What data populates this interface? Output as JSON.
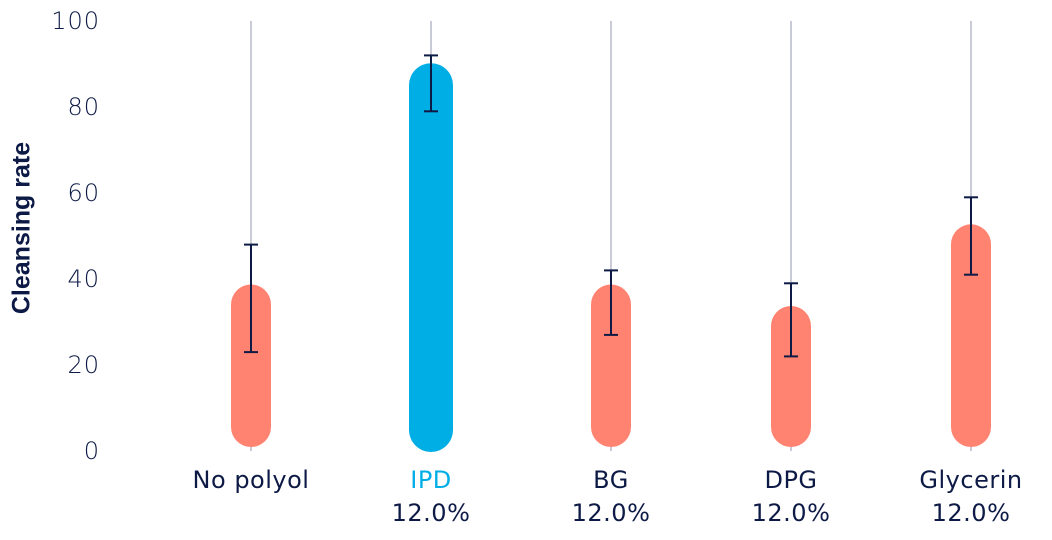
{
  "chart_data": {
    "type": "bar",
    "title": "",
    "xlabel": "",
    "ylabel": "Cleansing rate",
    "ylim": [
      0,
      100
    ],
    "yticks": [
      0,
      20,
      40,
      60,
      80,
      100
    ],
    "grid": "vertical lines behind each bar",
    "legend": null,
    "categories": [
      "No polyol",
      "IPD",
      "BG",
      "DPG",
      "Glycerin"
    ],
    "category_sublabels": [
      "",
      "12.0%",
      "12.0%",
      "12.0%",
      "12.0%"
    ],
    "values": [
      35,
      86,
      35,
      30,
      49
    ],
    "error_low": [
      23,
      79,
      27,
      22,
      41
    ],
    "error_high": [
      48,
      92,
      42,
      39,
      59
    ],
    "bar_colors": [
      "#FF8370",
      "#00AEE6",
      "#FF8370",
      "#FF8370",
      "#FF8370"
    ],
    "label_colors": [
      "#0d1a45",
      "#00AEE6",
      "#0d1a45",
      "#0d1a45",
      "#0d1a45"
    ],
    "highlight": "IPD"
  },
  "colors": {
    "text": "#0d1a45",
    "accent": "#00AEE6",
    "bar": "#FF8370",
    "grid": "#c9ccd6",
    "errorbar": "#0d1a45"
  },
  "axis": {
    "ylabel": "Cleansing rate",
    "yticks": [
      "0",
      "20",
      "40",
      "60",
      "80",
      "100"
    ]
  },
  "labels": [
    {
      "name": "No polyol",
      "sub": ""
    },
    {
      "name": "IPD",
      "sub": "12.0%"
    },
    {
      "name": "BG",
      "sub": "12.0%"
    },
    {
      "name": "DPG",
      "sub": "12.0%"
    },
    {
      "name": "Glycerin",
      "sub": "12.0%"
    }
  ]
}
